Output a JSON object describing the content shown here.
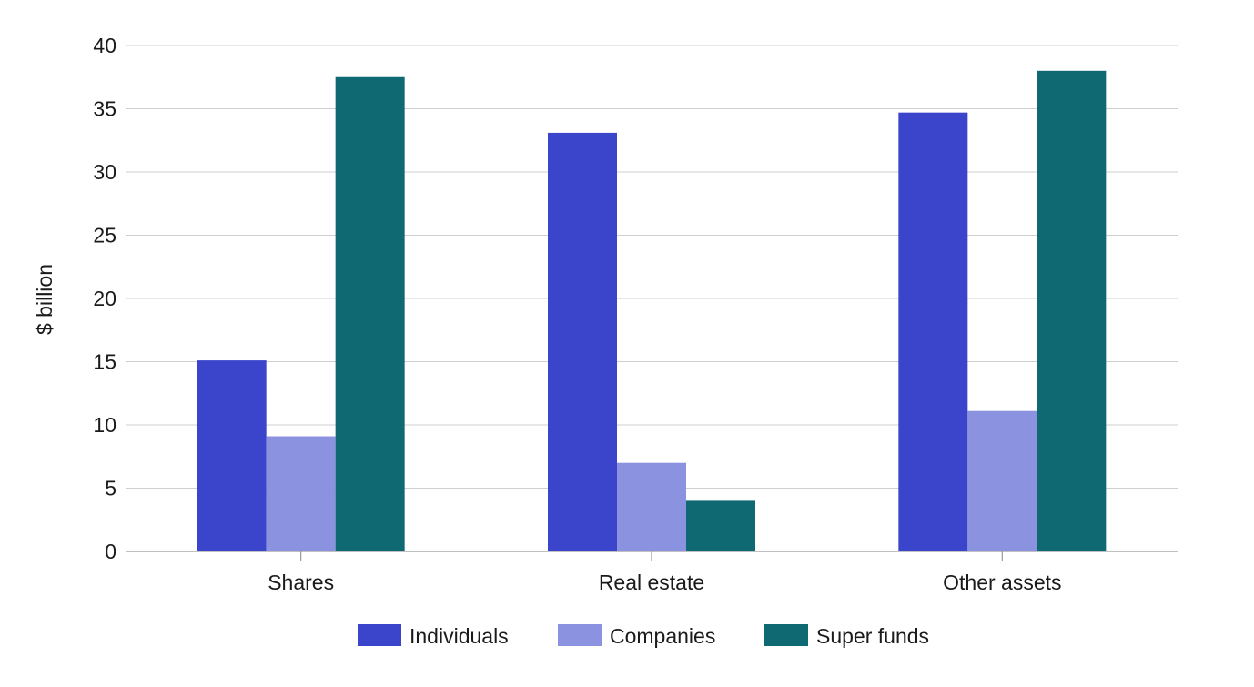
{
  "chart_data": {
    "type": "bar",
    "title": "",
    "xlabel": "",
    "ylabel": "$ billion",
    "ylim": [
      0,
      40
    ],
    "yticks": [
      0,
      5,
      10,
      15,
      20,
      25,
      30,
      35,
      40
    ],
    "grid": true,
    "legend_position": "bottom",
    "categories": [
      "Shares",
      "Real estate",
      "Other assets"
    ],
    "series": [
      {
        "name": "Individuals",
        "color": "#3a45cb",
        "values": [
          15.1,
          33.1,
          34.7
        ]
      },
      {
        "name": "Companies",
        "color": "#8b92e0",
        "values": [
          9.1,
          7.0,
          11.1
        ]
      },
      {
        "name": "Super funds",
        "color": "#0e6972",
        "values": [
          37.5,
          4.0,
          38.0
        ]
      }
    ]
  }
}
